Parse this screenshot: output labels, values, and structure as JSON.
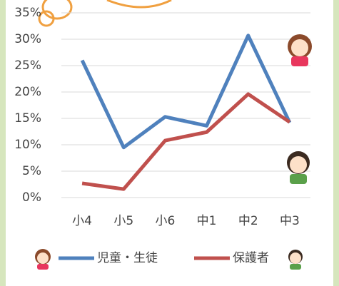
{
  "chart_data": {
    "type": "line",
    "categories": [
      "小4",
      "小5",
      "小6",
      "中1",
      "中2",
      "中3"
    ],
    "series": [
      {
        "name": "児童・生徒",
        "color": "#4f81bd",
        "values": [
          26,
          9.5,
          15.3,
          13.6,
          30.7,
          14.2
        ]
      },
      {
        "name": "保護者",
        "color": "#c0504d",
        "values": [
          2.7,
          1.6,
          10.8,
          12.4,
          19.6,
          14.3
        ]
      }
    ],
    "ylim": [
      0,
      35
    ],
    "yticks": [
      {
        "value": 0,
        "label": "0%"
      },
      {
        "value": 5,
        "label": "5%"
      },
      {
        "value": 10,
        "label": "10%"
      },
      {
        "value": 15,
        "label": "15%"
      },
      {
        "value": 20,
        "label": "20%"
      },
      {
        "value": 25,
        "label": "25%"
      },
      {
        "value": 30,
        "label": "30%"
      },
      {
        "value": 35,
        "label": "35%"
      }
    ],
    "grid": true
  }
}
